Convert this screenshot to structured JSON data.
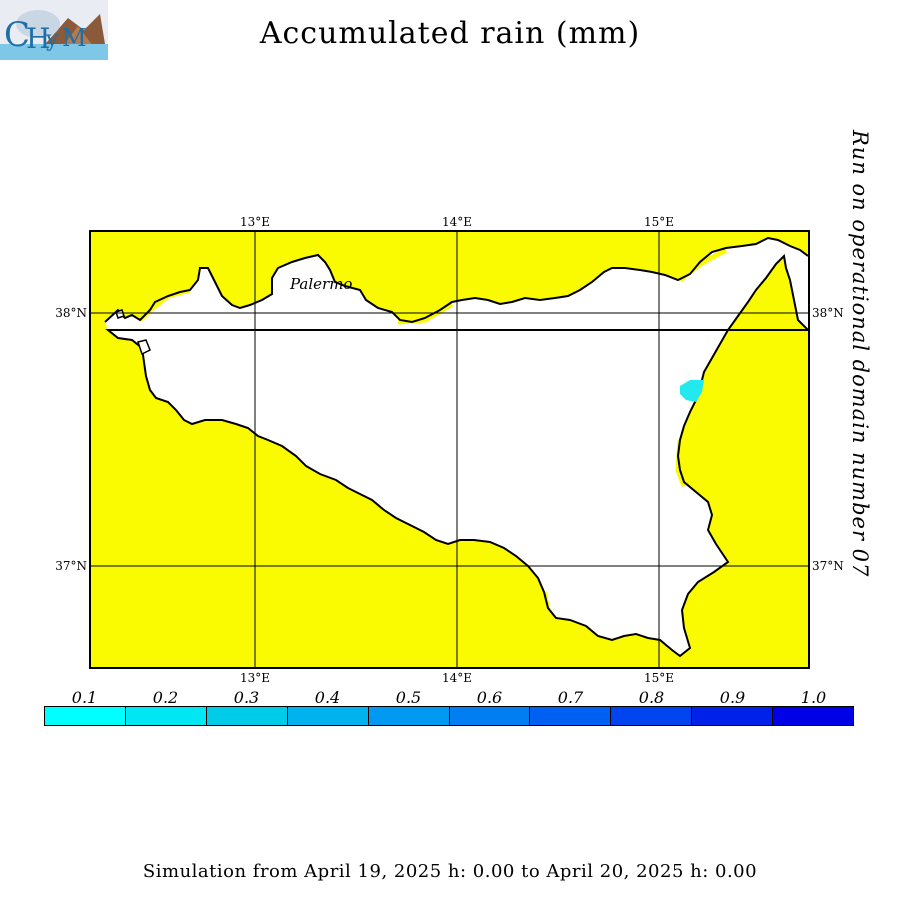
{
  "title": "Accumulated rain (mm)",
  "side_text": "Run on operational domain number 07",
  "footer": "Simulation from April 19, 2025 h: 0.00 to April 20, 2025 h: 0.00",
  "map": {
    "city_label": "Palermo",
    "lon_ticks": [
      "13°E",
      "14°E",
      "15°E"
    ],
    "lat_ticks": [
      "38°N",
      "37°N"
    ],
    "sea_color": "#fafa00",
    "land_color": "#ffffff",
    "rain_spot_color": "#22e8f0"
  },
  "legend": {
    "labels": [
      "0.1",
      "0.2",
      "0.3",
      "0.4",
      "0.5",
      "0.6",
      "0.7",
      "0.8",
      "0.9",
      "1.0"
    ],
    "colors": [
      "#00ffff",
      "#00e6f2",
      "#00cce8",
      "#00b3ef",
      "#0099f2",
      "#007ef2",
      "#0060f2",
      "#0044f0",
      "#0022e8",
      "#0000e6"
    ]
  }
}
